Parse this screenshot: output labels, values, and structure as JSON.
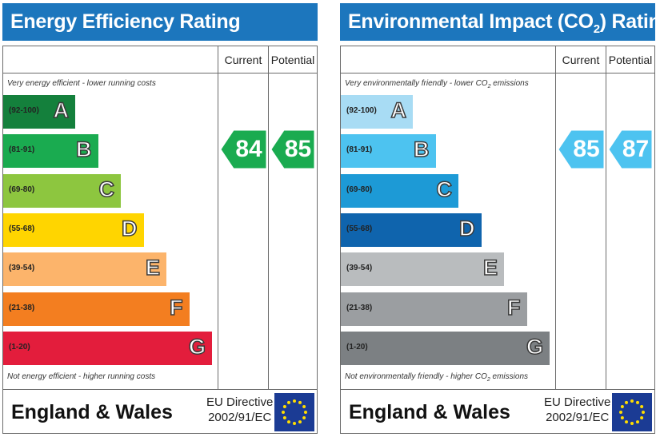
{
  "chart_data": [
    {
      "type": "bar",
      "title": "Energy Efficiency Rating",
      "columns": [
        "Current",
        "Potential"
      ],
      "top_caption": "Very energy efficient - lower running costs",
      "bottom_caption": "Not energy efficient - higher running costs",
      "bands": [
        {
          "range": "(92-100)",
          "letter": "A",
          "color": "#14803c"
        },
        {
          "range": "(81-91)",
          "letter": "B",
          "color": "#1aab50"
        },
        {
          "range": "(69-80)",
          "letter": "C",
          "color": "#8dc63f"
        },
        {
          "range": "(55-68)",
          "letter": "D",
          "color": "#ffd500"
        },
        {
          "range": "(39-54)",
          "letter": "E",
          "color": "#fcb46b"
        },
        {
          "range": "(21-38)",
          "letter": "F",
          "color": "#f37e20"
        },
        {
          "range": "(1-20)",
          "letter": "G",
          "color": "#e31d3c"
        }
      ],
      "current": {
        "value": 84,
        "band": "B",
        "color": "#1aab50"
      },
      "potential": {
        "value": 85,
        "band": "B",
        "color": "#1aab50"
      },
      "footer": "England & Wales",
      "directive_line1": "EU Directive",
      "directive_line2": "2002/91/EC"
    },
    {
      "type": "bar",
      "title_prefix": "Environmental Impact (CO",
      "title_sub": "2",
      "title_suffix": ") Rating",
      "columns": [
        "Current",
        "Potential"
      ],
      "top_caption_prefix": "Very environmentally friendly - lower CO",
      "top_caption_sub": "2",
      "top_caption_suffix": " emissions",
      "bottom_caption_prefix": "Not environmentally friendly - higher CO",
      "bottom_caption_sub": "2",
      "bottom_caption_suffix": " emissions",
      "bands": [
        {
          "range": "(92-100)",
          "letter": "A",
          "color": "#a8dcf4"
        },
        {
          "range": "(81-91)",
          "letter": "B",
          "color": "#4dc3f0"
        },
        {
          "range": "(69-80)",
          "letter": "C",
          "color": "#1d9ad6"
        },
        {
          "range": "(55-68)",
          "letter": "D",
          "color": "#0f64ad"
        },
        {
          "range": "(39-54)",
          "letter": "E",
          "color": "#b9bcbe"
        },
        {
          "range": "(21-38)",
          "letter": "F",
          "color": "#9b9ea1"
        },
        {
          "range": "(1-20)",
          "letter": "G",
          "color": "#7c8083"
        }
      ],
      "current": {
        "value": 85,
        "band": "B",
        "color": "#4dc3f0"
      },
      "potential": {
        "value": 87,
        "band": "B",
        "color": "#4dc3f0"
      },
      "footer": "England & Wales",
      "directive_line1": "EU Directive",
      "directive_line2": "2002/91/EC"
    }
  ]
}
